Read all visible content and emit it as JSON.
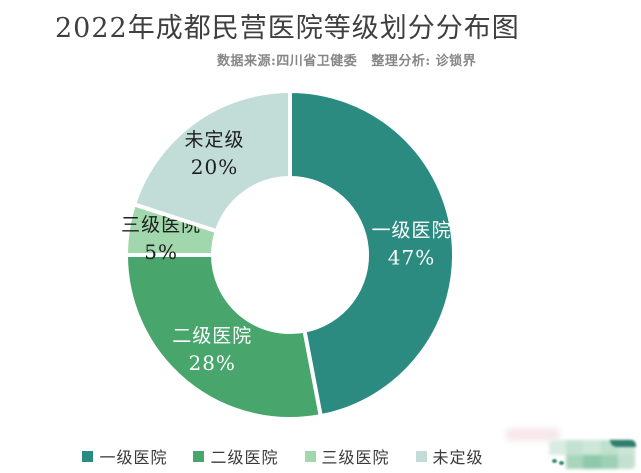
{
  "header": {
    "title": "2022年成都民营医院等级划分分布图",
    "source": "数据来源:四川省卫健委",
    "analysis": "整理分析: 诊锁界"
  },
  "chart_data": {
    "type": "pie",
    "subtype": "donut",
    "title": "2022年成都民营医院等级划分分布图",
    "categories": [
      "一级医院",
      "二级医院",
      "三级医院",
      "未定级"
    ],
    "values": [
      47,
      28,
      5,
      20
    ],
    "unit": "%",
    "colors": [
      "#2b8b81",
      "#48a56c",
      "#a0d7ac",
      "#c2dcd8"
    ],
    "label_colors": [
      "#ffffff",
      "#ffffff",
      "#1e1e1e",
      "#1e1e1e"
    ],
    "start_angle": "12-oclock",
    "direction": "clockwise",
    "inner_radius_ratio": 0.47,
    "slice_gap_color": "#ffffff",
    "legend_position": "bottom",
    "legend": [
      "一级医院",
      "二级医院",
      "三级医院",
      "未定级"
    ]
  }
}
